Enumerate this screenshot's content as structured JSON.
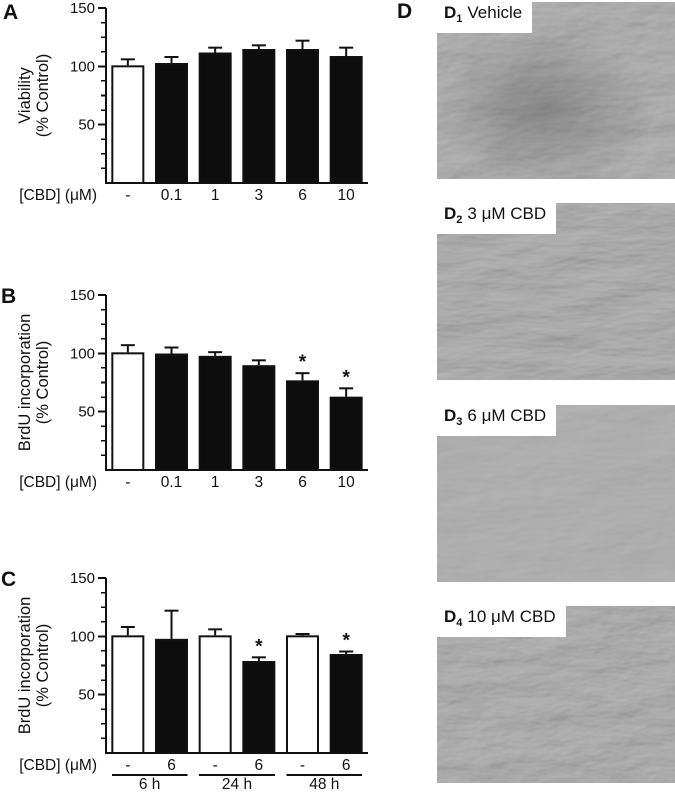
{
  "figure": {
    "panel_labels": {
      "A": "A",
      "B": "B",
      "C": "C",
      "D": "D"
    }
  },
  "colors": {
    "ink": "#111111",
    "bar_filled": "#0d0d0d",
    "bar_open": "#ffffff",
    "micrograph_gray": "#a0a0a0"
  },
  "chart_data": [
    {
      "panel": "A",
      "type": "bar",
      "title": "",
      "ylabel": [
        "Viability",
        "(% Control)"
      ],
      "xlabel": "[CBD] (μM)",
      "categories": [
        "-",
        "0.1",
        "1",
        "3",
        "6",
        "10"
      ],
      "values": [
        100,
        102,
        111,
        114,
        114,
        108
      ],
      "errors": [
        6,
        6,
        5,
        4,
        8,
        8
      ],
      "sig": [
        false,
        false,
        false,
        false,
        false,
        false
      ],
      "sig_marker": "*",
      "fill": [
        "open",
        "filled",
        "filled",
        "filled",
        "filled",
        "filled"
      ],
      "ylim": [
        0,
        150
      ],
      "yticks": [
        50,
        100,
        150
      ],
      "minor_divisions_per_major": 4,
      "grid": false
    },
    {
      "panel": "B",
      "type": "bar",
      "title": "",
      "ylabel": [
        "BrdU incorporation",
        "(% Control)"
      ],
      "xlabel": "[CBD] (μM)",
      "categories": [
        "-",
        "0.1",
        "1",
        "3",
        "6",
        "10"
      ],
      "values": [
        100,
        99,
        97,
        89,
        76,
        62
      ],
      "errors": [
        7,
        6,
        4,
        5,
        7,
        8
      ],
      "sig": [
        false,
        false,
        false,
        false,
        true,
        true
      ],
      "sig_marker": "*",
      "fill": [
        "open",
        "filled",
        "filled",
        "filled",
        "filled",
        "filled"
      ],
      "ylim": [
        0,
        150
      ],
      "yticks": [
        50,
        100,
        150
      ],
      "minor_divisions_per_major": 4,
      "grid": false
    },
    {
      "panel": "C",
      "type": "bar",
      "title": "",
      "ylabel": [
        "BrdU incorporation",
        "(% Control)"
      ],
      "xlabel": "[CBD] (μM)",
      "categories": [
        "-",
        "6",
        "-",
        "6",
        "-",
        "6"
      ],
      "values": [
        100,
        97,
        100,
        78,
        100,
        84
      ],
      "errors": [
        8,
        25,
        6,
        4,
        2,
        3
      ],
      "sig": [
        false,
        false,
        false,
        true,
        false,
        true
      ],
      "sig_marker": "*",
      "fill": [
        "open",
        "filled",
        "open",
        "filled",
        "open",
        "filled"
      ],
      "groups": [
        {
          "label": "6 h"
        },
        {
          "label": "24 h"
        },
        {
          "label": "48 h"
        }
      ],
      "ylim": [
        0,
        150
      ],
      "yticks": [
        50,
        100,
        150
      ],
      "minor_divisions_per_major": 4,
      "grid": false
    }
  ],
  "micrographs": [
    {
      "id": "D",
      "sub": "1",
      "caption": "Vehicle"
    },
    {
      "id": "D",
      "sub": "2",
      "caption": "3 μM CBD"
    },
    {
      "id": "D",
      "sub": "3",
      "caption": "6 μM CBD"
    },
    {
      "id": "D",
      "sub": "4",
      "caption": "10 μM CBD"
    }
  ]
}
